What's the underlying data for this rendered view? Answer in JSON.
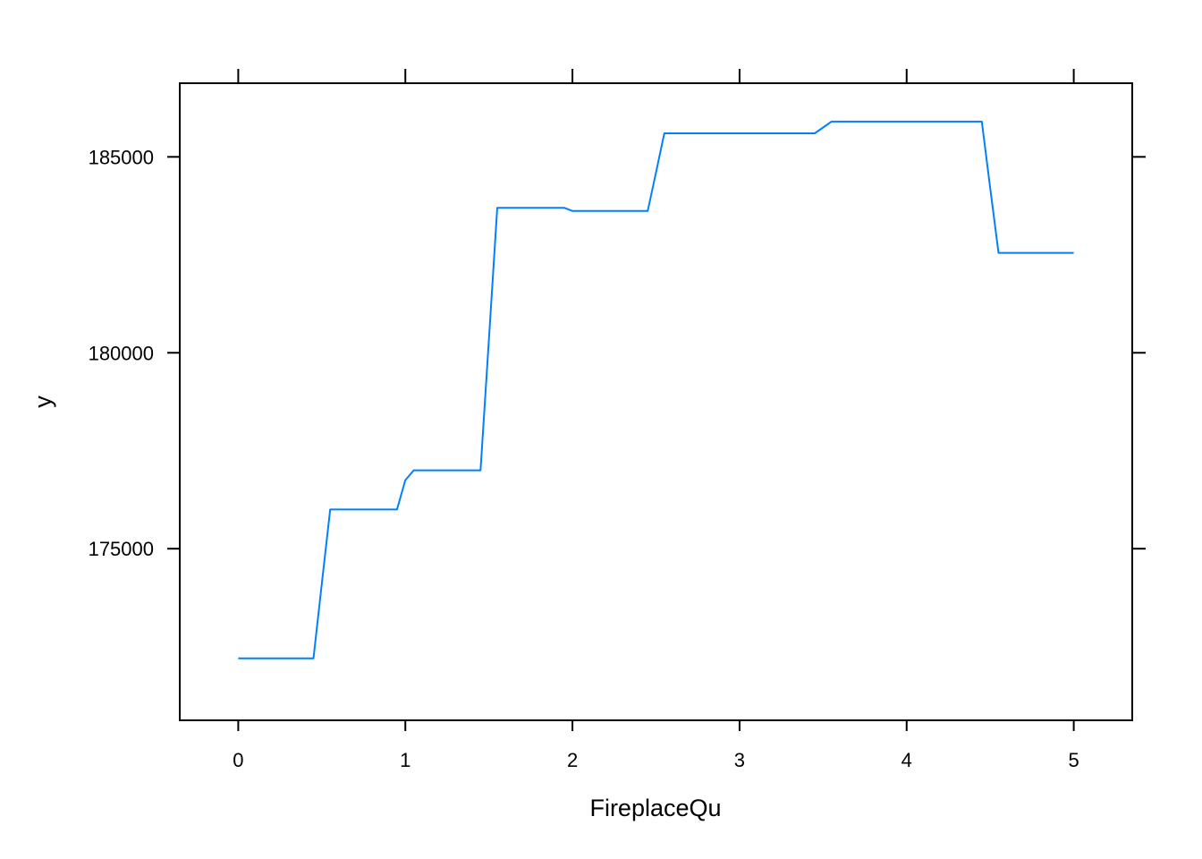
{
  "chart_data": {
    "type": "line",
    "title": "",
    "xlabel": "FireplaceQu",
    "ylabel": "y",
    "xlim": [
      -0.35,
      5.35
    ],
    "ylim": [
      170620,
      186880
    ],
    "xticks": [
      0,
      1,
      2,
      3,
      4,
      5
    ],
    "yticks": [
      175000,
      180000,
      185000
    ],
    "x_tick_labels": [
      "0",
      "1",
      "2",
      "3",
      "4",
      "5"
    ],
    "y_tick_labels": [
      "175000",
      "180000",
      "185000"
    ],
    "grid": false,
    "legend": "none",
    "series": [
      {
        "color": "#0080ff",
        "x": [
          0,
          0.45,
          0.5,
          0.55,
          0.95,
          1.0,
          1.05,
          1.45,
          1.5,
          1.55,
          1.95,
          2.0,
          2.05,
          2.45,
          2.5,
          2.55,
          2.95,
          3.0,
          3.05,
          3.45,
          3.5,
          3.55,
          3.95,
          4.0,
          4.05,
          4.45,
          4.5,
          4.55,
          4.95,
          5.0
        ],
        "y": [
          172200,
          172200,
          174100,
          176000,
          176000,
          176750,
          177000,
          177000,
          180350,
          183700,
          183700,
          183620,
          183620,
          183620,
          184600,
          185600,
          185600,
          185600,
          185600,
          185600,
          185750,
          185900,
          185900,
          185900,
          185900,
          185900,
          184200,
          182550,
          182550,
          182550
        ]
      }
    ]
  }
}
